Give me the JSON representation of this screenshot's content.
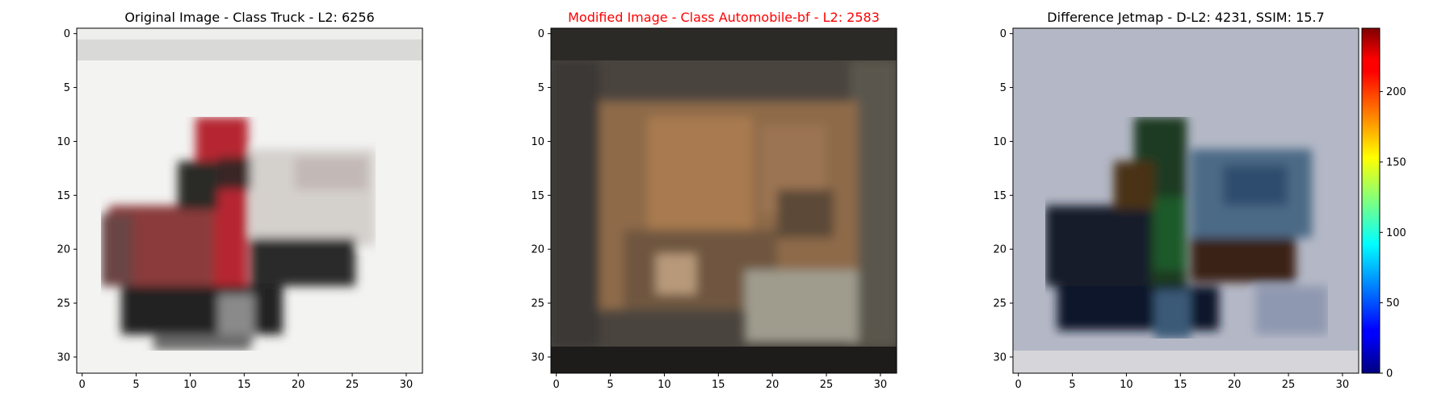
{
  "chart_data": [
    {
      "type": "heatmap",
      "title": "Original Image - Class Truck - L2: 6256",
      "title_color": "#000000",
      "image": "original-truck",
      "xticks": [
        0,
        5,
        10,
        15,
        20,
        25,
        30
      ],
      "yticks": [
        0,
        5,
        10,
        15,
        20,
        25,
        30
      ],
      "xlim": [
        -0.5,
        31.5
      ],
      "ylim": [
        31.5,
        -0.5
      ]
    },
    {
      "type": "heatmap",
      "title": "Modified Image - Class Automobile-bf - L2: 2583",
      "title_color": "#ff0000",
      "image": "modified-dog",
      "xticks": [
        0,
        5,
        10,
        15,
        20,
        25,
        30
      ],
      "yticks": [
        0,
        5,
        10,
        15,
        20,
        25,
        30
      ],
      "xlim": [
        -0.5,
        31.5
      ],
      "ylim": [
        31.5,
        -0.5
      ]
    },
    {
      "type": "heatmap",
      "title": "Difference Jetmap - D-L2: 4231, SSIM: 15.7",
      "title_color": "#000000",
      "image": "difference-jetmap",
      "xticks": [
        0,
        5,
        10,
        15,
        20,
        25,
        30
      ],
      "yticks": [
        0,
        5,
        10,
        15,
        20,
        25,
        30
      ],
      "xlim": [
        -0.5,
        31.5
      ],
      "ylim": [
        31.5,
        -0.5
      ],
      "colorbar": {
        "colormap": "jet",
        "ticks": [
          0,
          50,
          100,
          150,
          200
        ],
        "range": [
          0,
          245
        ]
      }
    }
  ]
}
